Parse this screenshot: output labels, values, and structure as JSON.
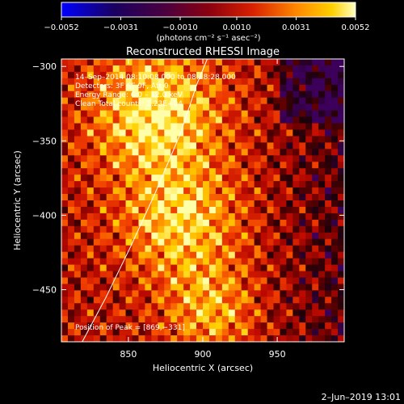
{
  "colorbar": {
    "tick_labels": [
      "−0.0052",
      "−0.0031",
      "−0.0010",
      "0.0010",
      "0.0031",
      "0.0052"
    ],
    "tick_values": [
      -0.0052,
      -0.0031,
      -0.001,
      0.001,
      0.0031,
      0.0052
    ],
    "unit_label": "(photons cm⁻² s⁻¹ asec⁻²)"
  },
  "chart_data": {
    "type": "heatmap",
    "title": "Reconstructed RHESSI Image",
    "xlabel": "Heliocentric X (arcsec)",
    "ylabel": "Heliocentric Y (arcsec)",
    "xlim": [
      805,
      995
    ],
    "ylim": [
      -485,
      -295
    ],
    "x_ticks": [
      850,
      900,
      950
    ],
    "x_tick_labels": [
      "850",
      "900",
      "950"
    ],
    "y_ticks": [
      -300,
      -350,
      -400,
      -450
    ],
    "y_tick_labels": [
      "−300",
      "−350",
      "−400",
      "−450"
    ],
    "value_range": [
      -0.0052,
      0.0052
    ],
    "colormap": "red-temperature",
    "peak_position": [
      869,
      -331
    ],
    "annotations": [
      "14–Sep–2014 08:10:08.000 to 08:18:28.000",
      "Detectors: 3F 6F 9F, Att 0",
      "Energy Range: 6.0 – 12.0 keV",
      "Clean     Total counts: 2.23E+04"
    ],
    "peak_label": "Position of Peak = [869,−331]",
    "limb_curve": [
      [
        819,
        -485
      ],
      [
        835,
        -455
      ],
      [
        852,
        -420
      ],
      [
        868,
        -385
      ],
      [
        885,
        -345
      ],
      [
        896,
        -312
      ],
      [
        903,
        -295
      ]
    ]
  },
  "footer": {
    "date": "2–Jun–2019 13:01"
  }
}
